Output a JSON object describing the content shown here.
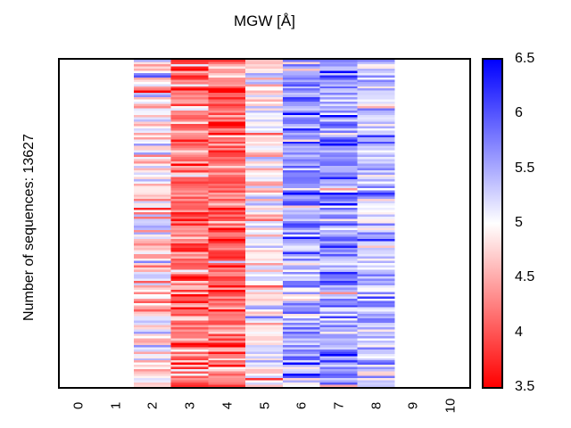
{
  "title": "MGW [Å]",
  "ylabel": "Number of sequences: 13627",
  "colors": {
    "background": "#ffffff",
    "border": "#000000",
    "text": "#000000"
  },
  "chart_data": {
    "type": "heatmap",
    "title": "MGW [Å]",
    "ylabel": "Number of sequences: 13627",
    "n_sequences": 13627,
    "xlim": [
      -0.5,
      10.5
    ],
    "x_ticks": [
      "0",
      "1",
      "2",
      "3",
      "4",
      "5",
      "6",
      "7",
      "8",
      "9",
      "10"
    ],
    "x_tick_values": [
      0,
      1,
      2,
      3,
      4,
      5,
      6,
      7,
      8,
      9,
      10
    ],
    "data_x_start": 1.5,
    "data_x_end": 8.5,
    "rows_rendered": 148,
    "seed": 20507,
    "row_bias_sd": 0.15,
    "columns": [
      {
        "x": 2,
        "mean": 4.9,
        "sd": 0.42
      },
      {
        "x": 3,
        "mean": 4.25,
        "sd": 0.42
      },
      {
        "x": 4,
        "mean": 4.1,
        "sd": 0.4
      },
      {
        "x": 5,
        "mean": 4.95,
        "sd": 0.32
      },
      {
        "x": 6,
        "mean": 5.55,
        "sd": 0.38
      },
      {
        "x": 7,
        "mean": 5.6,
        "sd": 0.38
      },
      {
        "x": 8,
        "mean": 5.35,
        "sd": 0.32
      }
    ],
    "colorbar": {
      "min": 3.5,
      "max": 6.5,
      "mid": 5.0,
      "ticks": [
        "6.5",
        "6",
        "5.5",
        "5",
        "4.5",
        "4",
        "3.5"
      ],
      "tick_values": [
        6.5,
        6.0,
        5.5,
        5.0,
        4.5,
        4.0,
        3.5
      ],
      "low_color": "#ff0000",
      "mid_color": "#ffffff",
      "high_color": "#0000ff"
    }
  }
}
